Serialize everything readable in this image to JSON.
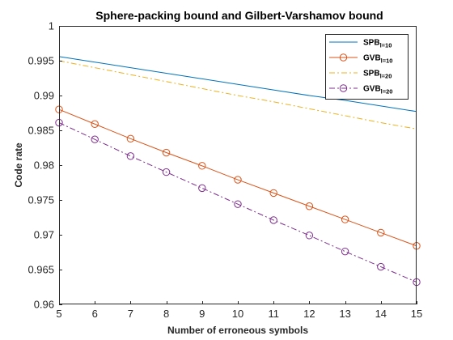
{
  "chart_data": {
    "type": "line",
    "title": "Sphere-packing bound and Gilbert-Varshamov bound",
    "xlabel": "Number of erroneous symbols",
    "ylabel": "Code rate",
    "xlim": [
      5,
      15
    ],
    "ylim": [
      0.96,
      1
    ],
    "xticks": [
      5,
      6,
      7,
      8,
      9,
      10,
      11,
      12,
      13,
      14,
      15
    ],
    "yticks": [
      0.96,
      0.965,
      0.97,
      0.975,
      0.98,
      0.985,
      0.99,
      0.995,
      1
    ],
    "ytick_labels": [
      "0.96",
      "0.965",
      "0.97",
      "0.975",
      "0.98",
      "0.985",
      "0.99",
      "0.995",
      "1"
    ],
    "grid": false,
    "legend_placement": "top-right",
    "x": [
      5,
      6,
      7,
      8,
      9,
      10,
      11,
      12,
      13,
      14,
      15
    ],
    "series": [
      {
        "name": "SPB",
        "subscript": "l=10",
        "color": "#0072BD",
        "line_style": "solid",
        "marker": "none",
        "values": [
          0.9956,
          0.9948,
          0.994,
          0.9932,
          0.9924,
          0.9916,
          0.9908,
          0.99,
          0.9893,
          0.9885,
          0.9877
        ]
      },
      {
        "name": "GVB",
        "subscript": "l=10",
        "color": "#D95319",
        "line_style": "solid",
        "marker": "circle",
        "values": [
          0.988,
          0.9859,
          0.9838,
          0.9818,
          0.9799,
          0.9779,
          0.976,
          0.9741,
          0.9722,
          0.9703,
          0.9684
        ]
      },
      {
        "name": "SPB",
        "subscript": "l=20",
        "color": "#EDB120",
        "line_style": "dashdot",
        "marker": "none",
        "values": [
          0.995,
          0.994,
          0.993,
          0.992,
          0.991,
          0.99,
          0.9891,
          0.9881,
          0.9871,
          0.9861,
          0.9852
        ]
      },
      {
        "name": "GVB",
        "subscript": "l=20",
        "color": "#7E2F8E",
        "line_style": "dashdot",
        "marker": "circle",
        "values": [
          0.9861,
          0.9837,
          0.9813,
          0.979,
          0.9767,
          0.9744,
          0.9721,
          0.9699,
          0.9676,
          0.9654,
          0.9632
        ]
      }
    ]
  }
}
